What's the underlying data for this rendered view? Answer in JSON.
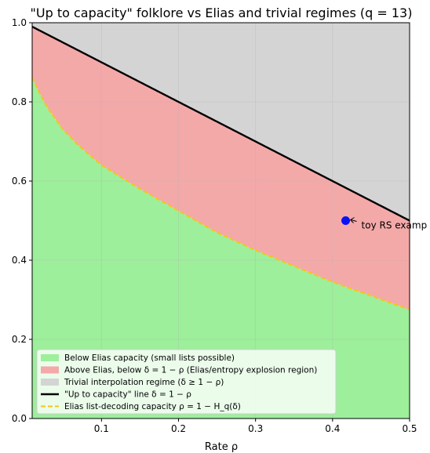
{
  "chart_data": {
    "type": "area",
    "title": "\"Up to capacity\" folklore vs Elias and trivial regimes  (q = 13)",
    "xlabel": "Rate ρ",
    "ylabel": "",
    "q": 13,
    "xlim": [
      0.01,
      0.5
    ],
    "ylim": [
      0.0,
      1.0
    ],
    "xticks": [
      0.1,
      0.2,
      0.3,
      0.4,
      0.5
    ],
    "xtick_labels": [
      "0.1",
      "0.2",
      "0.3",
      "0.4",
      "0.5"
    ],
    "yticks": [
      0.0,
      0.2,
      0.4,
      0.6,
      0.8,
      1.0
    ],
    "ytick_labels": [
      "0.0",
      "0.2",
      "0.4",
      "0.6",
      "0.8",
      "1.0"
    ],
    "grid": true,
    "legend_position": "lower-left",
    "series": [
      {
        "name": "\"Up to capacity\" line  δ = 1 − ρ",
        "kind": "line",
        "color": "#000000",
        "x": [
          0.01,
          0.1,
          0.2,
          0.3,
          0.4,
          0.5
        ],
        "y": [
          0.99,
          0.9,
          0.8,
          0.7,
          0.6,
          0.5
        ]
      },
      {
        "name": "Elias list-decoding capacity  ρ = 1 − H_q(δ)",
        "kind": "dashed-line",
        "color": "#f5c518",
        "x": [
          0.01,
          0.02,
          0.03,
          0.05,
          0.07,
          0.1,
          0.15,
          0.2,
          0.25,
          0.3,
          0.35,
          0.4,
          0.45,
          0.5
        ],
        "y": [
          0.862,
          0.82,
          0.785,
          0.73,
          0.69,
          0.64,
          0.58,
          0.525,
          0.47,
          0.425,
          0.385,
          0.345,
          0.31,
          0.275
        ]
      }
    ],
    "regions": [
      {
        "name": "Below Elias capacity (small lists possible)",
        "color": "#9def9b"
      },
      {
        "name": "Above Elias, below δ = 1 − ρ (Elias/entropy explosion region)",
        "color": "#f4a9a9"
      },
      {
        "name": "Trivial interpolation regime  (δ ≥ 1 − ρ)",
        "color": "#d4d4d4"
      }
    ],
    "points": [
      {
        "name": "toy RS example",
        "x": 0.417,
        "y": 0.5,
        "color": "#0a12f5"
      }
    ],
    "annotations": [
      {
        "text": "toy RS examp",
        "x": 0.417,
        "y": 0.5
      }
    ]
  }
}
